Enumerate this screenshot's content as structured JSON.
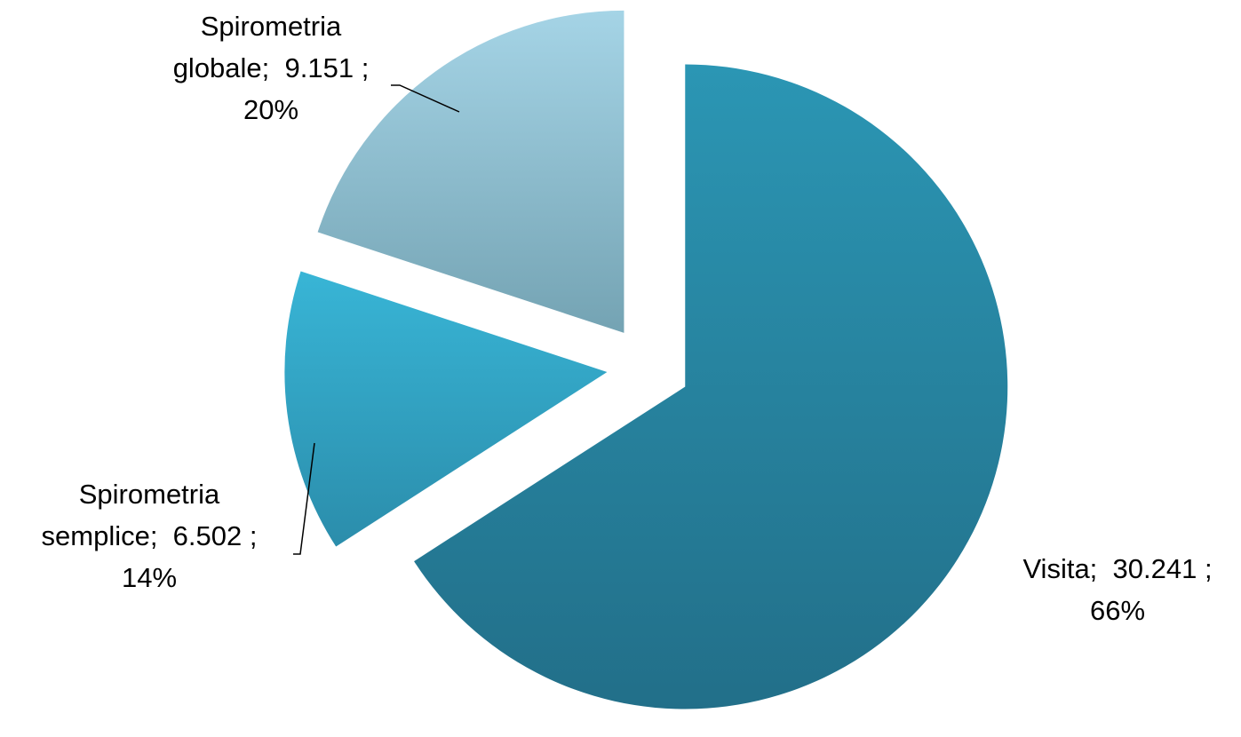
{
  "chart_data": {
    "type": "pie",
    "slices": [
      {
        "label_lines": [
          "Visita;  30.241 ;",
          "66%"
        ],
        "value": 30241,
        "percent": 66,
        "color_top": "#2b96b4",
        "color_bottom": "#226f89"
      },
      {
        "label_lines": [
          "Spirometria",
          "semplice;  6.502 ;",
          "14%"
        ],
        "value": 6502,
        "percent": 14,
        "color_top": "#38b5d6",
        "color_bottom": "#2b8dab"
      },
      {
        "label_lines": [
          "Spirometria",
          "globale;  9.151 ;",
          "20%"
        ],
        "value": 9151,
        "percent": 20,
        "color_top": "#a5d4e6",
        "color_bottom": "#74a3b3"
      }
    ],
    "start_angle": "12 o'clock",
    "direction": "clockwise",
    "exploded": true,
    "title": "",
    "legend": "none"
  }
}
